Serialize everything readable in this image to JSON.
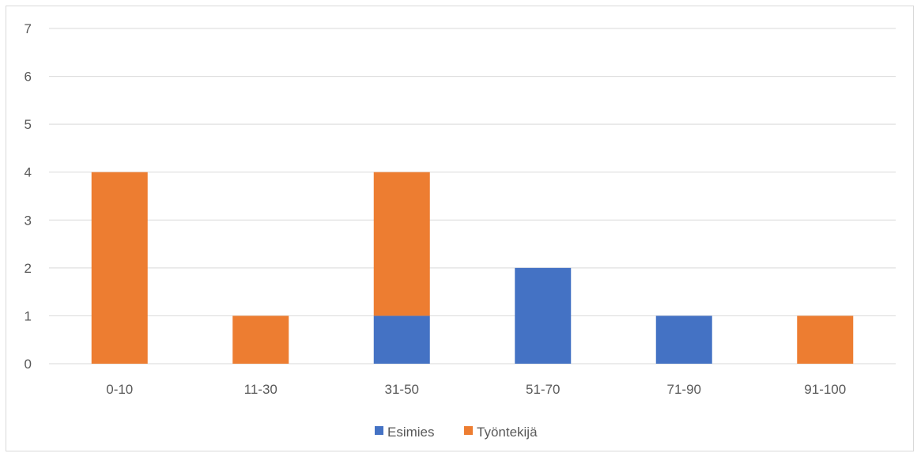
{
  "chart_data": {
    "type": "bar",
    "stacked": true,
    "categories": [
      "0-10",
      "11-30",
      "31-50",
      "51-70",
      "71-90",
      "91-100"
    ],
    "series": [
      {
        "name": "Esimies",
        "values": [
          0,
          0,
          1,
          2,
          1,
          0
        ],
        "color": "#4472c4"
      },
      {
        "name": "Työntekijä",
        "values": [
          4,
          1,
          3,
          0,
          0,
          1
        ],
        "color": "#ed7d31"
      }
    ],
    "title": "",
    "xlabel": "",
    "ylabel": "",
    "ylim": [
      0,
      7
    ],
    "yticks": [
      "0",
      "1",
      "2",
      "3",
      "4",
      "5",
      "6",
      "7"
    ],
    "grid": true,
    "legend_position": "bottom"
  }
}
